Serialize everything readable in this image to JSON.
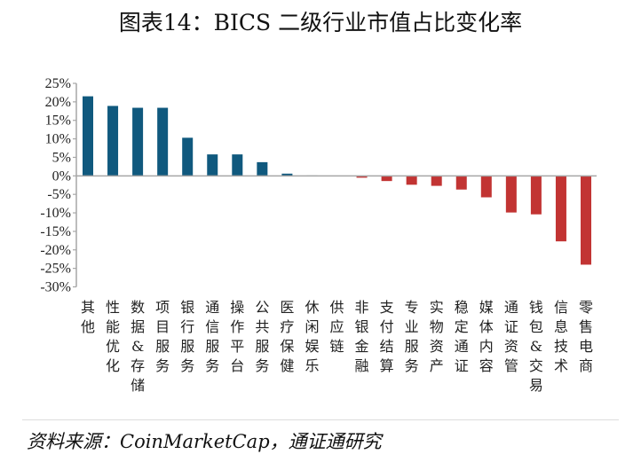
{
  "title": "图表14：BICS 二级行业市值占比变化率",
  "source": "资料来源：CoinMarketCap，通证通研究",
  "chart_data": {
    "type": "bar",
    "title": "图表14：BICS 二级行业市值占比变化率",
    "xlabel": "",
    "ylabel": "",
    "ylim": [
      -30,
      25
    ],
    "yticks": [
      "25%",
      "20%",
      "15%",
      "10%",
      "5%",
      "0%",
      "-5%",
      "-10%",
      "-15%",
      "-20%",
      "-25%",
      "-30%"
    ],
    "grid": false,
    "colors": {
      "positive": "#10597e",
      "negative": "#c23433",
      "axis": "#a6a6a6"
    },
    "categories": [
      "其他",
      "性能优化",
      "数据&存储",
      "项目服务",
      "银行服务",
      "通信服务",
      "操作平台",
      "公共服务",
      "医疗保健",
      "休闲娱乐",
      "供应链",
      "非银金融",
      "支付结算",
      "专业服务",
      "实物资产",
      "稳定通证",
      "媒体内容",
      "通证资管",
      "钱包&交易",
      "信息技术",
      "零售电商"
    ],
    "values": [
      21.5,
      18.9,
      18.4,
      18.4,
      10.3,
      5.8,
      5.8,
      3.7,
      0.6,
      0.1,
      0,
      -0.5,
      -1.4,
      -2.4,
      -2.7,
      -3.7,
      -5.8,
      -9.9,
      -10.4,
      -17.7,
      -24.0
    ]
  }
}
